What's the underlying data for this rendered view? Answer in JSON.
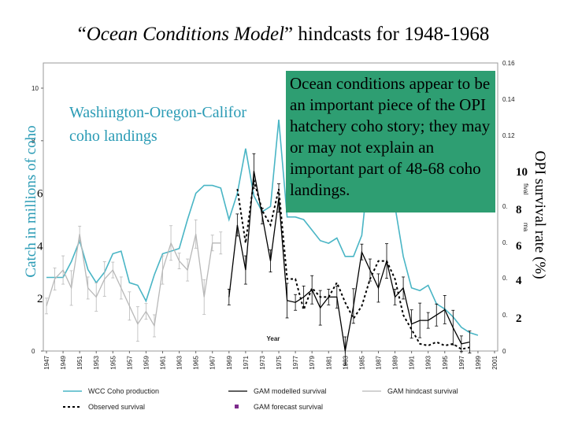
{
  "title": {
    "part1": "“",
    "italic": "Ocean Conditions Model",
    "part2": "” hindcasts for 1948-1968"
  },
  "callout_text": "Ocean conditions appear to be an important piece of the OPI hatchery coho story; they may or may not explain an important part of 48-68 coho landings.",
  "left_axis_label": "Catch in millions of coho",
  "right_axis_label": "OPI survival rate (%)",
  "inset_label_line1": "Washington-Oregon-Califor",
  "inset_label_line2": "coho landings",
  "colors": {
    "wcc": "#49b5c5",
    "gam_model": "#000000",
    "gam_hindcast": "#b8b8b8",
    "observed": "#000000",
    "forecast": "#7d2a8c",
    "callout": "#2e9e72",
    "left_label": "#2a9bb5"
  },
  "chart_data": {
    "type": "line",
    "xlabel": "Year",
    "x_ticks": [
      "1947",
      "1949",
      "1951",
      "1953",
      "1955",
      "1957",
      "1959",
      "1961",
      "1963",
      "1965",
      "1967",
      "1969",
      "1971",
      "1973",
      "1975",
      "1977",
      "1979",
      "1981",
      "1983",
      "1985",
      "1987",
      "1989",
      "1991",
      "1993",
      "1995",
      "1997",
      "1999",
      "2001"
    ],
    "xlim": [
      1947,
      2001
    ],
    "y_left": {
      "ticks": [
        "0",
        "",
        "",
        "",
        "8",
        "10"
      ],
      "big_ticks": [
        "2",
        "4",
        "6"
      ],
      "ylim": [
        0,
        10
      ]
    },
    "y_right": {
      "ticks": [
        "0",
        "0.",
        "0.",
        "0.",
        "0.",
        "0.12",
        "0.14",
        "0.16"
      ],
      "big_ticks": [
        "2",
        "4",
        "6",
        "8",
        "10"
      ],
      "ylim": [
        0,
        0.16
      ],
      "fragment_labels": [
        "fival",
        "ma"
      ]
    },
    "series": [
      {
        "name": "WCC Coho production",
        "axis": "left",
        "x": [
          1947,
          1948,
          1949,
          1950,
          1951,
          1952,
          1953,
          1954,
          1955,
          1956,
          1957,
          1958,
          1959,
          1960,
          1961,
          1962,
          1963,
          1964,
          1965,
          1966,
          1967,
          1968,
          1969,
          1970,
          1971,
          1972,
          1973,
          1974,
          1975,
          1976,
          1977,
          1978,
          1979,
          1980,
          1981,
          1982,
          1983,
          1984,
          1985,
          1986,
          1987,
          1988,
          1989,
          1990,
          1991,
          1992,
          1993,
          1994,
          1995,
          1996,
          1997,
          1998,
          1999
        ],
        "values": [
          2.8,
          2.8,
          2.8,
          3.4,
          4.2,
          3.1,
          2.6,
          3.0,
          3.7,
          3.8,
          2.6,
          2.5,
          1.9,
          2.9,
          3.7,
          3.8,
          3.9,
          5.0,
          6.0,
          6.3,
          6.3,
          6.2,
          5.0,
          6.0,
          7.7,
          5.9,
          5.3,
          5.5,
          8.8,
          5.1,
          5.1,
          5.0,
          4.6,
          4.2,
          4.1,
          4.3,
          3.6,
          3.6,
          4.4,
          7.4,
          6.0,
          5.7,
          5.5,
          3.6,
          2.4,
          2.3,
          2.5,
          1.8,
          1.6,
          1.3,
          0.9,
          0.7,
          0.6
        ]
      },
      {
        "name": "GAM modelled survival",
        "axis": "right",
        "x": [
          1969,
          1970,
          1971,
          1972,
          1973,
          1974,
          1975,
          1976,
          1977,
          1978,
          1979,
          1980,
          1981,
          1982,
          1983,
          1984,
          1985,
          1986,
          1987,
          1988,
          1989,
          1990,
          1991,
          1992,
          1993,
          1994,
          1995,
          1996,
          1997,
          1998
        ],
        "values": [
          0.03,
          0.07,
          0.045,
          0.1,
          0.075,
          0.05,
          0.085,
          0.028,
          0.027,
          0.03,
          0.034,
          0.024,
          0.03,
          0.03,
          0.0,
          0.025,
          0.055,
          0.045,
          0.035,
          0.05,
          0.03,
          0.035,
          0.015,
          0.017,
          0.017,
          0.02,
          0.023,
          0.013,
          0.004,
          0.005
        ]
      },
      {
        "name": "GAM hindcast survival",
        "axis": "right",
        "x": [
          1947,
          1948,
          1949,
          1950,
          1951,
          1952,
          1953,
          1954,
          1955,
          1956,
          1957,
          1958,
          1959,
          1960,
          1961,
          1962,
          1963,
          1964,
          1965,
          1966,
          1967,
          1968
        ],
        "values": [
          0.025,
          0.04,
          0.045,
          0.035,
          0.065,
          0.035,
          0.03,
          0.04,
          0.045,
          0.035,
          0.025,
          0.015,
          0.022,
          0.014,
          0.045,
          0.06,
          0.05,
          0.045,
          0.065,
          0.03,
          0.06,
          0.06
        ]
      },
      {
        "name": "Observed survival",
        "axis": "right",
        "x": [
          1970,
          1971,
          1972,
          1973,
          1974,
          1975,
          1976,
          1977,
          1978,
          1979,
          1980,
          1981,
          1982,
          1983,
          1984,
          1985,
          1986,
          1987,
          1988,
          1989,
          1990,
          1991,
          1992,
          1993,
          1994,
          1995,
          1996,
          1997,
          1998
        ],
        "values": [
          0.09,
          0.06,
          0.095,
          0.078,
          0.07,
          0.09,
          0.04,
          0.04,
          0.023,
          0.035,
          0.03,
          0.03,
          0.038,
          0.027,
          0.018,
          0.025,
          0.04,
          0.05,
          0.05,
          0.04,
          0.02,
          0.012,
          0.004,
          0.003,
          0.005,
          0.003,
          0.004,
          0.001,
          0.002
        ]
      },
      {
        "name": "GAM forecast survival",
        "axis": "right",
        "x": [],
        "values": []
      }
    ],
    "legend": {
      "placement": "bottom",
      "entries": [
        "WCC Coho production",
        "GAM modelled survival",
        "GAM hindcast survival",
        "Observed survival",
        "GAM forecast survival"
      ]
    }
  }
}
